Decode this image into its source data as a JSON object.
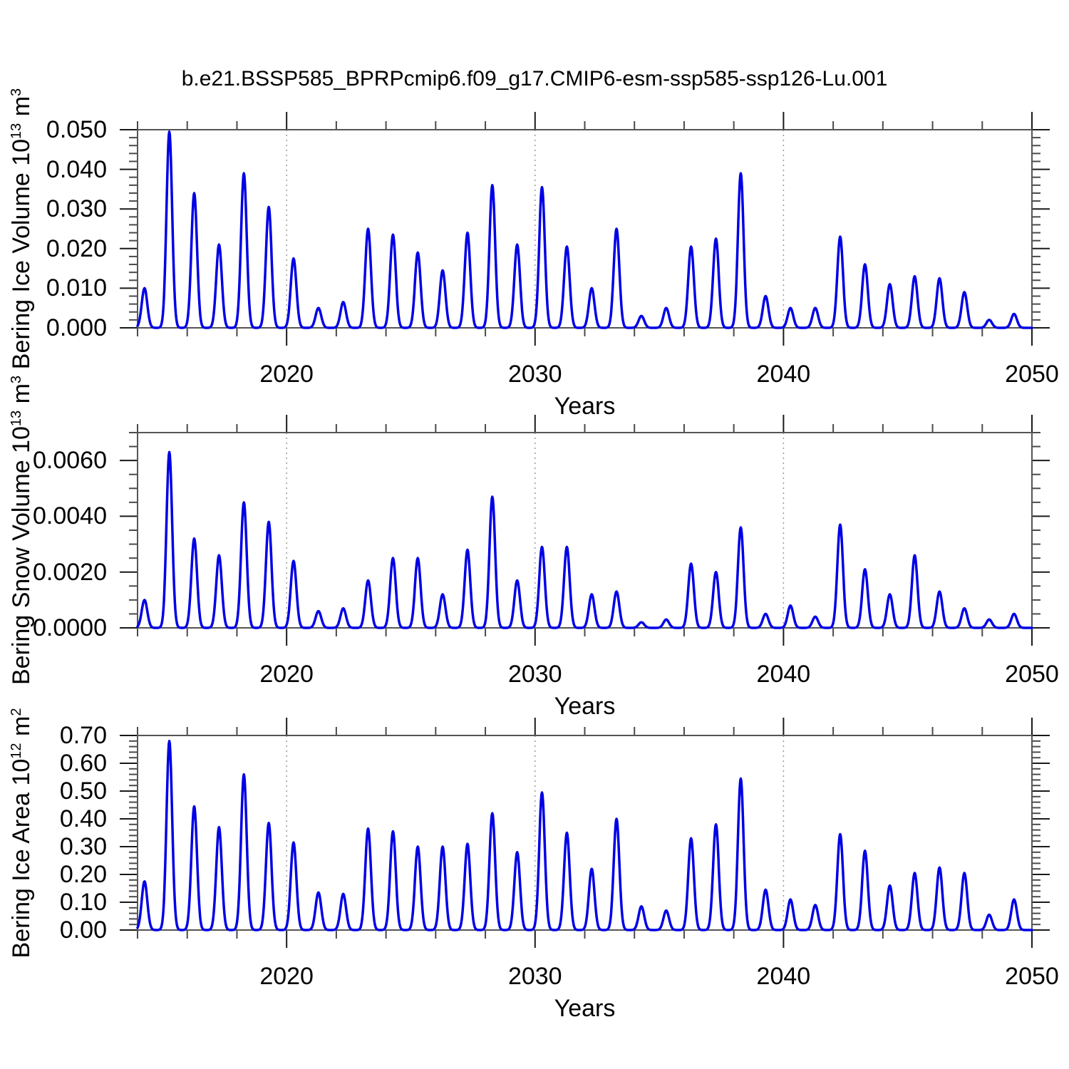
{
  "title": "b.e21.BSSP585_BPRPcmip6.f09_g17.CMIP6-esm-ssp585-ssp126-Lu.001",
  "colors": {
    "line": "#0000E6",
    "frame": "#555555",
    "major_tick": "#1a1a1a",
    "minor_tick": "#4a4a4a",
    "grid": "#999999",
    "text": "#000000",
    "background": "#ffffff"
  },
  "x_axis": {
    "label": "Years",
    "range": [
      2014,
      2050
    ],
    "major_ticks": [
      2020,
      2030,
      2040,
      2050
    ],
    "major_tick_labels": [
      "2020",
      "2030",
      "2040",
      "2050"
    ],
    "minor_tick_interval": 2,
    "gridlines_dashed": [
      2020,
      2030,
      2040
    ]
  },
  "chart_data": [
    {
      "type": "line",
      "id": "ice-volume",
      "ylabel_parts": [
        {
          "text": "Bering Ice Volume 10"
        },
        {
          "text": "13",
          "sup": true
        },
        {
          "text": " m"
        },
        {
          "text": "3",
          "sup": true
        }
      ],
      "y_range": [
        0,
        0.05
      ],
      "y_major_ticks": [
        0.0,
        0.01,
        0.02,
        0.03,
        0.04,
        0.05
      ],
      "y_tick_labels": [
        "0.000",
        "0.010",
        "0.020",
        "0.030",
        "0.040",
        "0.050"
      ],
      "y_minor_interval": 0.002,
      "grid": false,
      "legend": "none",
      "years": [
        2014,
        2015,
        2016,
        2017,
        2018,
        2019,
        2020,
        2021,
        2022,
        2023,
        2024,
        2025,
        2026,
        2027,
        2028,
        2029,
        2030,
        2031,
        2032,
        2033,
        2034,
        2035,
        2036,
        2037,
        2038,
        2039,
        2040,
        2041,
        2042,
        2043,
        2044,
        2045,
        2046,
        2047,
        2048,
        2049
      ],
      "annual_peak_values": [
        0.01,
        0.0495,
        0.034,
        0.021,
        0.039,
        0.0305,
        0.0175,
        0.005,
        0.0065,
        0.025,
        0.0235,
        0.019,
        0.0145,
        0.024,
        0.036,
        0.021,
        0.0355,
        0.0205,
        0.01,
        0.025,
        0.003,
        0.005,
        0.0205,
        0.0225,
        0.039,
        0.008,
        0.005,
        0.005,
        0.023,
        0.016,
        0.011,
        0.013,
        0.0125,
        0.009,
        0.002,
        0.0035
      ],
      "peak_season_offset_years": 0.28,
      "peak_width_sigma_years": 0.16
    },
    {
      "type": "line",
      "id": "snow-volume",
      "ylabel_parts": [
        {
          "text": "Bering Snow Volume 10"
        },
        {
          "text": "13",
          "sup": true
        },
        {
          "text": " m"
        },
        {
          "text": "3",
          "sup": true
        }
      ],
      "y_range": [
        0,
        0.007
      ],
      "y_major_ticks": [
        0.0,
        0.002,
        0.004,
        0.006
      ],
      "y_tick_labels": [
        "0.0000",
        "0.0020",
        "0.0040",
        "0.0060"
      ],
      "y_minor_interval": 0.0005,
      "grid": false,
      "legend": "none",
      "years": [
        2014,
        2015,
        2016,
        2017,
        2018,
        2019,
        2020,
        2021,
        2022,
        2023,
        2024,
        2025,
        2026,
        2027,
        2028,
        2029,
        2030,
        2031,
        2032,
        2033,
        2034,
        2035,
        2036,
        2037,
        2038,
        2039,
        2040,
        2041,
        2042,
        2043,
        2044,
        2045,
        2046,
        2047,
        2048,
        2049
      ],
      "annual_peak_values": [
        0.001,
        0.0063,
        0.0032,
        0.0026,
        0.0045,
        0.0038,
        0.0024,
        0.0006,
        0.0007,
        0.0017,
        0.0025,
        0.0025,
        0.0012,
        0.0028,
        0.0047,
        0.0017,
        0.0029,
        0.0029,
        0.0012,
        0.0013,
        0.0002,
        0.0003,
        0.0023,
        0.002,
        0.0036,
        0.0005,
        0.0008,
        0.0004,
        0.0037,
        0.0021,
        0.0012,
        0.0026,
        0.0013,
        0.0007,
        0.0003,
        0.0005
      ],
      "peak_season_offset_years": 0.28,
      "peak_width_sigma_years": 0.16
    },
    {
      "type": "line",
      "id": "ice-area",
      "ylabel_parts": [
        {
          "text": "Bering Ice Area 10"
        },
        {
          "text": "12",
          "sup": true
        },
        {
          "text": " m"
        },
        {
          "text": "2",
          "sup": true
        }
      ],
      "y_range": [
        0,
        0.7
      ],
      "y_major_ticks": [
        0.0,
        0.1,
        0.2,
        0.3,
        0.4,
        0.5,
        0.6,
        0.7
      ],
      "y_tick_labels": [
        "0.00",
        "0.10",
        "0.20",
        "0.30",
        "0.40",
        "0.50",
        "0.60",
        "0.70"
      ],
      "y_minor_interval": 0.02,
      "grid": false,
      "legend": "none",
      "years": [
        2014,
        2015,
        2016,
        2017,
        2018,
        2019,
        2020,
        2021,
        2022,
        2023,
        2024,
        2025,
        2026,
        2027,
        2028,
        2029,
        2030,
        2031,
        2032,
        2033,
        2034,
        2035,
        2036,
        2037,
        2038,
        2039,
        2040,
        2041,
        2042,
        2043,
        2044,
        2045,
        2046,
        2047,
        2048,
        2049
      ],
      "annual_peak_values": [
        0.175,
        0.68,
        0.445,
        0.37,
        0.56,
        0.385,
        0.315,
        0.135,
        0.13,
        0.365,
        0.355,
        0.3,
        0.3,
        0.31,
        0.42,
        0.28,
        0.495,
        0.35,
        0.22,
        0.4,
        0.085,
        0.07,
        0.33,
        0.38,
        0.545,
        0.145,
        0.11,
        0.09,
        0.345,
        0.285,
        0.16,
        0.205,
        0.225,
        0.205,
        0.055,
        0.11
      ],
      "peak_season_offset_years": 0.28,
      "peak_width_sigma_years": 0.16
    }
  ]
}
